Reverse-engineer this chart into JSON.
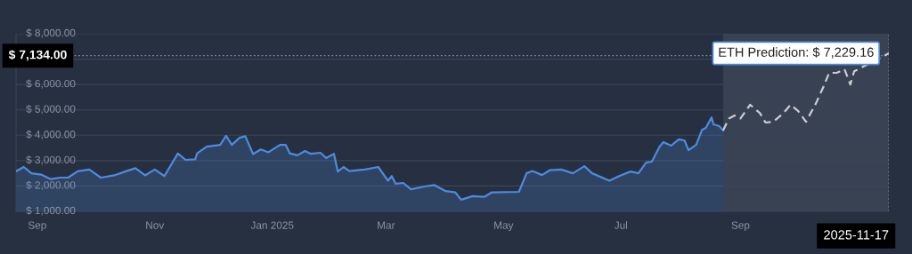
{
  "chart_data": {
    "type": "line",
    "xlim": [
      "2024-08-21",
      "2025-11-17"
    ],
    "xticks": [
      {
        "value": "2024-09-01",
        "label": "Sep"
      },
      {
        "value": "2024-11-01",
        "label": "Nov"
      },
      {
        "value": "2025-01-01",
        "label": "Jan 2025"
      },
      {
        "value": "2025-03-01",
        "label": "Mar"
      },
      {
        "value": "2025-05-01",
        "label": "May"
      },
      {
        "value": "2025-07-01",
        "label": "Jul"
      },
      {
        "value": "2025-09-01",
        "label": "Sep"
      }
    ],
    "ylim": [
      1000,
      8000
    ],
    "yticks": [
      {
        "value": 1000,
        "label": "$ 1,000.00"
      },
      {
        "value": 2000,
        "label": "$ 2,000.00"
      },
      {
        "value": 3000,
        "label": "$ 3,000.00"
      },
      {
        "value": 4000,
        "label": "$ 4,000.00"
      },
      {
        "value": 5000,
        "label": "$ 5,000.00"
      },
      {
        "value": 6000,
        "label": "$ 6,000.00"
      },
      {
        "value": 7000,
        "label": null
      },
      {
        "value": 8000,
        "label": "$ 8,000.00"
      }
    ],
    "grid": "y",
    "series": [
      {
        "type": "area",
        "color": "#4f8ae0",
        "line_style": "solid",
        "x": [
          "2024-08-21",
          "2024-08-25",
          "2024-08-29",
          "2024-09-03",
          "2024-09-08",
          "2024-09-13",
          "2024-09-17",
          "2024-09-22",
          "2024-09-28",
          "2024-10-04",
          "2024-10-11",
          "2024-10-17",
          "2024-10-22",
          "2024-10-27",
          "2024-11-01",
          "2024-11-06",
          "2024-11-13",
          "2024-11-17",
          "2024-11-22",
          "2024-11-23",
          "2024-11-28",
          "2024-12-05",
          "2024-12-08",
          "2024-12-11",
          "2024-12-15",
          "2024-12-18",
          "2024-12-22",
          "2024-12-26",
          "2024-12-30",
          "2025-01-05",
          "2025-01-08",
          "2025-01-10",
          "2025-01-14",
          "2025-01-18",
          "2025-01-21",
          "2025-01-26",
          "2025-01-29",
          "2025-02-02",
          "2025-02-04",
          "2025-02-07",
          "2025-02-10",
          "2025-02-18",
          "2025-02-25",
          "2025-03-02",
          "2025-03-04",
          "2025-03-06",
          "2025-03-10",
          "2025-03-14",
          "2025-03-21",
          "2025-03-26",
          "2025-04-01",
          "2025-04-06",
          "2025-04-09",
          "2025-04-15",
          "2025-04-21",
          "2025-04-25",
          "2025-05-09",
          "2025-05-13",
          "2025-05-16",
          "2025-05-21",
          "2025-05-25",
          "2025-05-31",
          "2025-06-06",
          "2025-06-12",
          "2025-06-16",
          "2025-06-25",
          "2025-06-30",
          "2025-07-06",
          "2025-07-10",
          "2025-07-14",
          "2025-07-17",
          "2025-07-21",
          "2025-07-23",
          "2025-07-27",
          "2025-07-31",
          "2025-08-03",
          "2025-08-05",
          "2025-08-09",
          "2025-08-12",
          "2025-08-14",
          "2025-08-17",
          "2025-08-18",
          "2025-08-21",
          "2025-08-23"
        ],
        "values": [
          2580,
          2750,
          2500,
          2450,
          2270,
          2330,
          2330,
          2580,
          2650,
          2330,
          2420,
          2580,
          2700,
          2420,
          2650,
          2390,
          3280,
          3030,
          3050,
          3290,
          3550,
          3620,
          3980,
          3620,
          3900,
          3960,
          3260,
          3440,
          3330,
          3620,
          3620,
          3290,
          3210,
          3380,
          3270,
          3310,
          3100,
          3270,
          2570,
          2750,
          2590,
          2650,
          2750,
          2210,
          2390,
          2090,
          2120,
          1870,
          1980,
          2040,
          1800,
          1750,
          1460,
          1600,
          1570,
          1750,
          1770,
          2500,
          2590,
          2430,
          2620,
          2650,
          2500,
          2780,
          2500,
          2210,
          2390,
          2570,
          2500,
          2920,
          2960,
          3550,
          3730,
          3590,
          3840,
          3790,
          3410,
          3620,
          4210,
          4290,
          4700,
          4430,
          4360,
          4190
        ]
      },
      {
        "color": "#c9cdd3",
        "line_style": "dashed",
        "x": [
          "2025-08-23",
          "2025-08-26",
          "2025-08-29",
          "2025-09-01",
          "2025-09-06",
          "2025-09-11",
          "2025-09-14",
          "2025-09-18",
          "2025-09-23",
          "2025-09-27",
          "2025-10-01",
          "2025-10-05",
          "2025-10-10",
          "2025-10-14",
          "2025-10-17",
          "2025-10-21",
          "2025-10-25",
          "2025-10-28",
          "2025-10-30",
          "2025-11-17"
        ],
        "values": [
          4190,
          4660,
          4780,
          4660,
          5200,
          4880,
          4500,
          4530,
          4850,
          5200,
          4950,
          4530,
          5230,
          5900,
          6460,
          6460,
          6600,
          6000,
          6520,
          7229.16
        ]
      }
    ],
    "bands": [
      {
        "axis": "x",
        "from": "2025-08-23",
        "to": "2025-11-17",
        "color": "#394252"
      }
    ],
    "ref_lines": [
      {
        "axis": "y",
        "value": 7134,
        "label": "$ 7,134.00",
        "line_style": "dotted",
        "color": "#7d8594"
      },
      {
        "axis": "x",
        "value": "2025-11-17",
        "label": "2025-11-17",
        "line_style": "dotted",
        "color": "#7d8594"
      }
    ],
    "annotations": [
      {
        "text": "ETH Prediction: $ 7,229.16",
        "x": "2025-11-17",
        "y": 7229.16
      }
    ]
  }
}
